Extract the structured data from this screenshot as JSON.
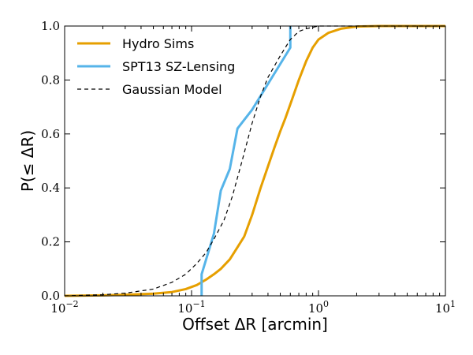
{
  "chart_data": {
    "type": "line",
    "xlabel": "Offset ΔR [arcmin]",
    "ylabel": "P(≤ ΔR)",
    "xscale": "log",
    "xlim": [
      0.01,
      10
    ],
    "ylim": [
      0.0,
      1.0
    ],
    "grid": false,
    "legend_position": "top-left",
    "x_ticks": [
      {
        "value": 0.01,
        "base": "10",
        "exp": "−2"
      },
      {
        "value": 0.1,
        "base": "10",
        "exp": "−1"
      },
      {
        "value": 1,
        "base": "10",
        "exp": "0"
      },
      {
        "value": 10,
        "base": "10",
        "exp": "1"
      }
    ],
    "y_ticks": [
      "0.0",
      "0.2",
      "0.4",
      "0.6",
      "0.8",
      "1.0"
    ],
    "series": [
      {
        "name": "Hydro Sims",
        "color": "#E69F00",
        "style": "solid",
        "x": [
          0.01,
          0.02,
          0.03,
          0.05,
          0.07,
          0.09,
          0.11,
          0.13,
          0.15,
          0.17,
          0.2,
          0.23,
          0.26,
          0.3,
          0.35,
          0.4,
          0.45,
          0.5,
          0.55,
          0.6,
          0.7,
          0.8,
          0.9,
          1.0,
          1.2,
          1.5,
          2.0,
          3.0,
          10
        ],
        "y": [
          0.0,
          0.002,
          0.004,
          0.008,
          0.014,
          0.025,
          0.04,
          0.06,
          0.08,
          0.1,
          0.135,
          0.18,
          0.22,
          0.3,
          0.4,
          0.48,
          0.55,
          0.61,
          0.66,
          0.71,
          0.8,
          0.87,
          0.92,
          0.95,
          0.975,
          0.99,
          0.998,
          1.0,
          1.0
        ]
      },
      {
        "name": "SPT13 SZ-Lensing",
        "color": "#56B4E9",
        "style": "solid",
        "x": [
          0.12,
          0.12,
          0.15,
          0.17,
          0.2,
          0.23,
          0.3,
          0.6,
          0.6
        ],
        "y": [
          0.0,
          0.08,
          0.23,
          0.39,
          0.47,
          0.62,
          0.69,
          0.92,
          1.0
        ]
      },
      {
        "name": "Gaussian Model",
        "color": "#000000",
        "style": "dashed",
        "x": [
          0.01,
          0.02,
          0.03,
          0.05,
          0.07,
          0.09,
          0.11,
          0.13,
          0.15,
          0.18,
          0.21,
          0.25,
          0.3,
          0.35,
          0.4,
          0.5,
          0.6,
          0.7,
          0.8,
          1.0,
          10
        ],
        "y": [
          0.0,
          0.004,
          0.01,
          0.025,
          0.05,
          0.08,
          0.12,
          0.16,
          0.21,
          0.28,
          0.37,
          0.5,
          0.64,
          0.74,
          0.81,
          0.89,
          0.95,
          0.98,
          0.99,
          1.0,
          1.0
        ]
      }
    ]
  }
}
